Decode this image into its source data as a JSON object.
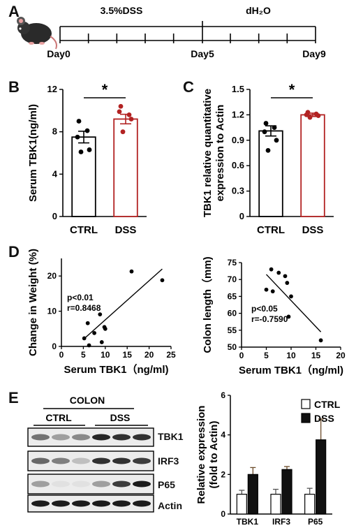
{
  "panel_A": {
    "letter": "A",
    "phase1": "3.5%DSS",
    "phase2": "dH₂O",
    "days": [
      "Day0",
      "Day5",
      "Day9"
    ]
  },
  "panel_E": {
    "letter": "E",
    "tissue": "COLON",
    "group1": "CTRL",
    "group2": "DSS",
    "blot_rows": [
      "TBK1",
      "IRF3",
      "P65",
      "Actin"
    ]
  },
  "colors": {
    "ctrl": "#000000",
    "dss": "#b22222",
    "bar_dss": "#111111"
  },
  "chart_data": [
    {
      "type": "bar",
      "panel": "B",
      "categories": [
        "CTRL",
        "DSS"
      ],
      "values": [
        7.5,
        9.2
      ],
      "errors": [
        0.55,
        0.45
      ],
      "points": [
        [
          9.0,
          8.1,
          7.5,
          6.3,
          6.1
        ],
        [
          10.4,
          9.6,
          9.9,
          9.2,
          8.0
        ]
      ],
      "ylabel": "Serum TBK1(ng/ml)",
      "ylim": [
        0,
        12
      ],
      "yticks": [
        0,
        4,
        8,
        12
      ],
      "significance": "*"
    },
    {
      "type": "bar",
      "panel": "C",
      "categories": [
        "CTRL",
        "DSS"
      ],
      "values": [
        1.01,
        1.2
      ],
      "errors": [
        0.06,
        0.02
      ],
      "points": [
        [
          1.1,
          1.05,
          1.0,
          0.9,
          0.78
        ],
        [
          1.23,
          1.21,
          1.2,
          1.19,
          1.17
        ]
      ],
      "ylabel": "TBK1 relative quantitative expression to Actin",
      "ylim": [
        0,
        1.5
      ],
      "yticks": [
        "0",
        "0.3",
        "0.6",
        "0.9",
        "1.2",
        "1.5"
      ],
      "significance": "*"
    },
    {
      "type": "scatter",
      "panel": "D",
      "x": [
        5.2,
        6.0,
        6.3,
        7.5,
        8.8,
        9.2,
        9.8,
        10.0,
        16.0,
        23.0
      ],
      "y": [
        2.3,
        6.6,
        0.3,
        3.8,
        9.1,
        1.2,
        5.5,
        5.0,
        21.3,
        18.8
      ],
      "fit": [
        [
          5,
          2.0
        ],
        [
          23,
          22.0
        ]
      ],
      "xlabel": "Serum TBK1（ng/ml)",
      "ylabel": "Change in Weight (%)",
      "xlim": [
        0,
        25
      ],
      "ylim": [
        0,
        25
      ],
      "xticks": [
        0,
        5,
        10,
        15,
        20,
        25
      ],
      "yticks": [
        0,
        10,
        20
      ],
      "annotation": [
        "p<0.01",
        "r=0.8468"
      ]
    },
    {
      "type": "scatter",
      "panel": "D2",
      "x": [
        5.0,
        6.0,
        6.3,
        7.5,
        8.8,
        9.2,
        9.5,
        10.0,
        16.0
      ],
      "y": [
        67.0,
        73.0,
        66.5,
        72.0,
        71.0,
        69.0,
        59.0,
        65.0,
        52.0
      ],
      "fit": [
        [
          5,
          71.5
        ],
        [
          16,
          54.5
        ]
      ],
      "xlabel": "Serum TBK1（ng/ml)",
      "ylabel": "Colon length（mm)",
      "xlim": [
        0,
        20
      ],
      "ylim": [
        50,
        75
      ],
      "xticks": [
        0,
        5,
        10,
        15,
        20
      ],
      "yticks": [
        50,
        55,
        60,
        65,
        70,
        75
      ],
      "annotation": [
        "p<0.05",
        "r=-0.7590"
      ]
    },
    {
      "type": "bar",
      "panel": "E",
      "categories": [
        "TBK1",
        "IRF3",
        "P65"
      ],
      "series": [
        {
          "name": "CTRL",
          "values": [
            1.0,
            1.0,
            1.0
          ],
          "errors": [
            0.2,
            0.25,
            0.3
          ]
        },
        {
          "name": "DSS",
          "values": [
            2.0,
            2.25,
            3.75
          ],
          "errors": [
            0.35,
            0.15,
            1.05
          ]
        }
      ],
      "ylabel": "Relative expression (fold to Actin)",
      "ylim": [
        0,
        6
      ],
      "yticks": [
        0,
        2,
        4,
        6
      ]
    }
  ]
}
